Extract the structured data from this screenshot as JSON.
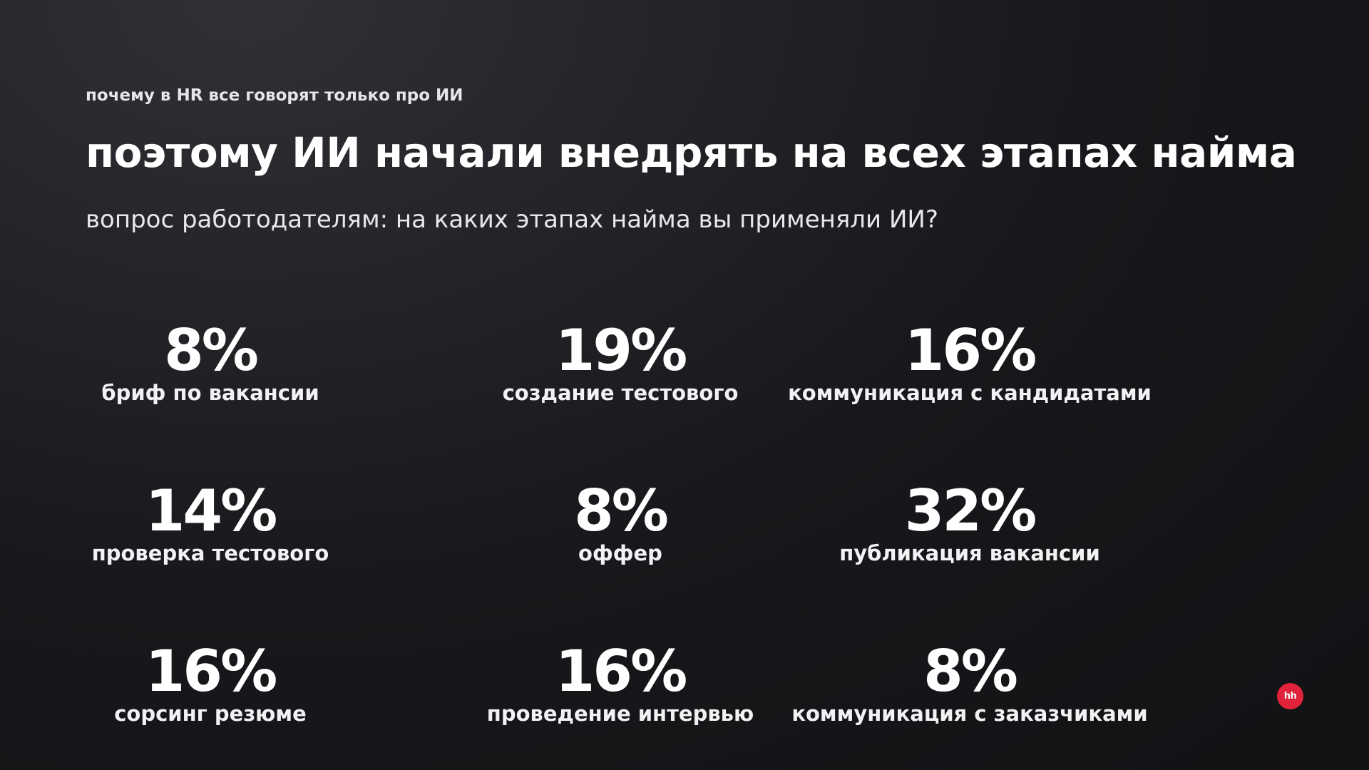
{
  "slide": {
    "kicker": "почему в HR все говорят только про ИИ",
    "title": "поэтому ИИ начали внедрять на всех этапах найма",
    "subtitle": "вопрос работодателям: на каких этапах найма вы применяли ИИ?"
  },
  "stats": [
    {
      "value": "8%",
      "label": "бриф по вакансии"
    },
    {
      "value": "19%",
      "label": "создание тестового"
    },
    {
      "value": "16%",
      "label": "коммуникация с кандидатами"
    },
    {
      "value": "14%",
      "label": "проверка тестового"
    },
    {
      "value": "8%",
      "label": "оффер"
    },
    {
      "value": "32%",
      "label": "публикация вакансии"
    },
    {
      "value": "16%",
      "label": "сорсинг резюме"
    },
    {
      "value": "16%",
      "label": "проведение интервью"
    },
    {
      "value": "8%",
      "label": "коммуникация с заказчиками"
    }
  ],
  "logo": {
    "text": "hh",
    "color": "#e0223a"
  }
}
